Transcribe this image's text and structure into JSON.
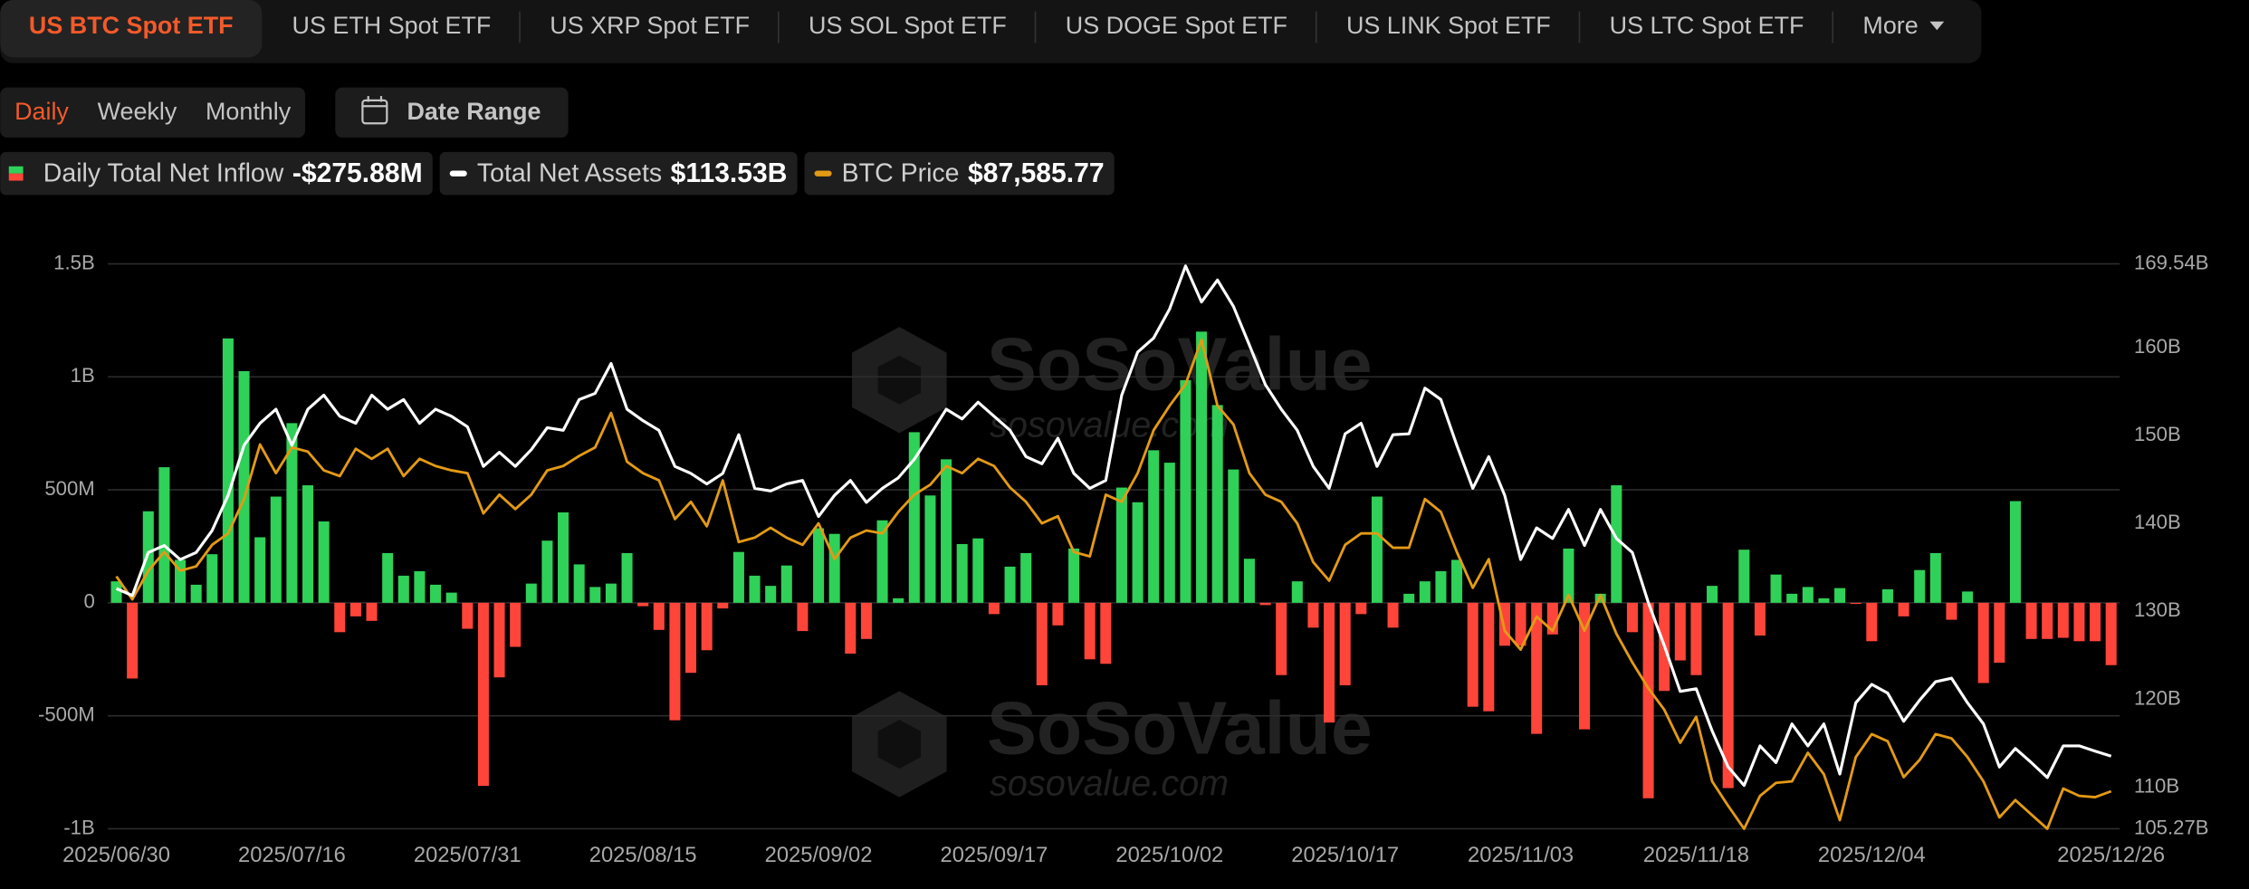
{
  "tabs": [
    "US BTC Spot ETF",
    "US ETH Spot ETF",
    "US XRP Spot ETF",
    "US SOL Spot ETF",
    "US DOGE Spot ETF",
    "US LINK Spot ETF",
    "US LTC Spot ETF"
  ],
  "active_tab": 0,
  "more_menu": "More",
  "periods": [
    "Daily",
    "Weekly",
    "Monthly"
  ],
  "active_period": 0,
  "date_range_button": "Date Range",
  "watermark": {
    "brand": "SoSoValue",
    "url": "sosovalue.com"
  },
  "chart_data": {
    "type": "combo",
    "grid": true,
    "categories": [
      "2025/06/30",
      null,
      null,
      null,
      null,
      null,
      null,
      null,
      null,
      null,
      null,
      "2025/07/16",
      null,
      null,
      null,
      null,
      null,
      null,
      null,
      null,
      null,
      null,
      "2025/07/31",
      null,
      null,
      null,
      null,
      null,
      null,
      null,
      null,
      null,
      null,
      "2025/08/15",
      null,
      null,
      null,
      null,
      null,
      null,
      null,
      null,
      null,
      null,
      "2025/09/02",
      null,
      null,
      null,
      null,
      null,
      null,
      null,
      null,
      null,
      null,
      "2025/09/17",
      null,
      null,
      null,
      null,
      null,
      null,
      null,
      null,
      null,
      null,
      "2025/10/02",
      null,
      null,
      null,
      null,
      null,
      null,
      null,
      null,
      null,
      null,
      "2025/10/17",
      null,
      null,
      null,
      null,
      null,
      null,
      null,
      null,
      null,
      null,
      "2025/11/03",
      null,
      null,
      null,
      null,
      null,
      null,
      null,
      null,
      null,
      null,
      "2025/11/18",
      null,
      null,
      null,
      null,
      null,
      null,
      null,
      null,
      null,
      null,
      "2025/12/04",
      null,
      null,
      null,
      null,
      null,
      null,
      null,
      null,
      null,
      null,
      null,
      null,
      null,
      null,
      "2025/12/26"
    ],
    "series": [
      {
        "name": "Daily Total Net Inflow",
        "type": "bar",
        "color": "#2fd158",
        "negative_color": "#ff453a",
        "current_label": "-$275.88M",
        "values": [
          95,
          -335,
          405,
          600,
          190,
          80,
          215,
          1170,
          1025,
          290,
          470,
          795,
          520,
          360,
          -130,
          -60,
          -80,
          220,
          120,
          140,
          80,
          45,
          -115,
          -810,
          -330,
          -195,
          85,
          275,
          400,
          170,
          70,
          85,
          220,
          -15,
          -120,
          -520,
          -310,
          -210,
          -25,
          225,
          120,
          75,
          165,
          -125,
          330,
          305,
          -225,
          -160,
          365,
          20,
          755,
          475,
          635,
          260,
          285,
          -50,
          160,
          220,
          -365,
          -100,
          240,
          -250,
          -270,
          510,
          445,
          675,
          620,
          985,
          1200,
          875,
          590,
          195,
          -10,
          -320,
          95,
          -110,
          -530,
          -365,
          -50,
          470,
          -110,
          40,
          95,
          140,
          190,
          -460,
          -480,
          -190,
          -190,
          -580,
          -140,
          240,
          -560,
          40,
          520,
          -130,
          -865,
          -390,
          -255,
          -320,
          75,
          -820,
          235,
          -145,
          125,
          40,
          70,
          20,
          65,
          -5,
          -170,
          60,
          -60,
          145,
          220,
          -75,
          50,
          -355,
          -265,
          450,
          -160,
          -160,
          -155,
          -170,
          -170,
          -275.88
        ]
      },
      {
        "name": "BTC Price",
        "type": "line",
        "axis": "y3",
        "color": "#e39a14",
        "current_label": "$87,585.77",
        "values": [
          105270,
          103380,
          105740,
          107280,
          105740,
          106100,
          107870,
          108810,
          111640,
          116130,
          113770,
          115890,
          115540,
          114000,
          113530,
          115780,
          114950,
          115780,
          113530,
          114950,
          114360,
          114000,
          113770,
          110460,
          112000,
          110820,
          112000,
          114000,
          114360,
          115190,
          115890,
          118730,
          114710,
          113770,
          113180,
          109990,
          111410,
          109400,
          113180,
          108100,
          108460,
          109280,
          108460,
          107870,
          109640,
          106690,
          108460,
          109050,
          108810,
          110580,
          112000,
          112820,
          114360,
          113770,
          114950,
          114360,
          112590,
          111410,
          109640,
          110230,
          107280,
          106920,
          112000,
          111410,
          113770,
          117310,
          119320,
          121090,
          124750,
          119320,
          117780,
          113770,
          112000,
          111410,
          109640,
          106450,
          104920,
          107870,
          108810,
          108810,
          107630,
          107630,
          111640,
          110580,
          107280,
          104330,
          106690,
          100790,
          99250,
          101970,
          100790,
          103740,
          100790,
          103740,
          100550,
          98190,
          96070,
          94300,
          91580,
          93710,
          88400,
          86390,
          84500,
          87210,
          88280,
          88400,
          90760,
          88990,
          85210,
          90400,
          92290,
          91700,
          88750,
          90170,
          92290,
          91940,
          90400,
          88400,
          85440,
          86860,
          85680,
          84500,
          87810,
          87210,
          87100,
          87585.77
        ]
      },
      {
        "name": "Total Net Assets",
        "type": "line",
        "axis": "y2",
        "color": "#ffffff",
        "current_label": "$113.53B",
        "values": [
          132.6,
          131.8,
          136.7,
          137.5,
          135.9,
          136.7,
          139.2,
          143.2,
          148.9,
          151.4,
          153.0,
          148.9,
          153.0,
          154.6,
          152.2,
          151.4,
          154.6,
          153.0,
          154.1,
          151.4,
          153.0,
          152.2,
          151.0,
          146.5,
          148.1,
          146.5,
          148.4,
          150.9,
          150.6,
          154.1,
          154.8,
          158.2,
          153.0,
          151.7,
          150.6,
          146.5,
          145.7,
          144.5,
          145.7,
          150.1,
          144.0,
          143.7,
          144.5,
          144.9,
          140.8,
          143.2,
          144.9,
          142.4,
          144.0,
          145.2,
          147.3,
          150.1,
          153.0,
          151.9,
          153.8,
          152.2,
          150.6,
          147.6,
          146.8,
          149.7,
          145.7,
          144.0,
          144.9,
          154.6,
          159.5,
          161.1,
          164.4,
          169.3,
          165.2,
          167.7,
          164.7,
          160.3,
          155.8,
          153.0,
          150.6,
          146.5,
          144.0,
          150.2,
          151.4,
          146.5,
          150.1,
          150.2,
          155.4,
          154.1,
          148.9,
          144.0,
          147.6,
          143.2,
          135.9,
          139.5,
          138.3,
          141.6,
          137.5,
          141.6,
          138.3,
          136.7,
          131.0,
          126.1,
          120.9,
          121.2,
          116.4,
          112.3,
          110.2,
          114.7,
          112.8,
          117.2,
          114.7,
          117.2,
          111.5,
          119.6,
          121.7,
          120.7,
          117.5,
          119.9,
          122.0,
          122.4,
          119.6,
          117.2,
          112.3,
          114.4,
          112.8,
          111.1,
          114.7,
          114.7,
          114.1,
          113.53
        ]
      }
    ],
    "ylim": [
      -1000,
      1500
    ],
    "yticks": [
      {
        "value": -1000,
        "label": "-1B"
      },
      {
        "value": -500,
        "label": "-500M"
      },
      0,
      {
        "value": 500,
        "label": "500M"
      },
      {
        "value": 1000,
        "label": "1B"
      },
      {
        "value": 1500,
        "label": "1.5B"
      }
    ],
    "y2lim": [
      105.27,
      169.54
    ],
    "y2ticks": [
      {
        "value": 105.27,
        "label": "105.27B"
      },
      {
        "value": 110,
        "label": "110B"
      },
      {
        "value": 120,
        "label": "120B"
      },
      {
        "value": 130,
        "label": "130B"
      },
      {
        "value": 140,
        "label": "140B"
      },
      {
        "value": 150,
        "label": "150B"
      },
      {
        "value": 160,
        "label": "160B"
      },
      {
        "value": 169.54,
        "label": "169.54B"
      }
    ],
    "y3lim": [
      84500,
      131000
    ]
  }
}
